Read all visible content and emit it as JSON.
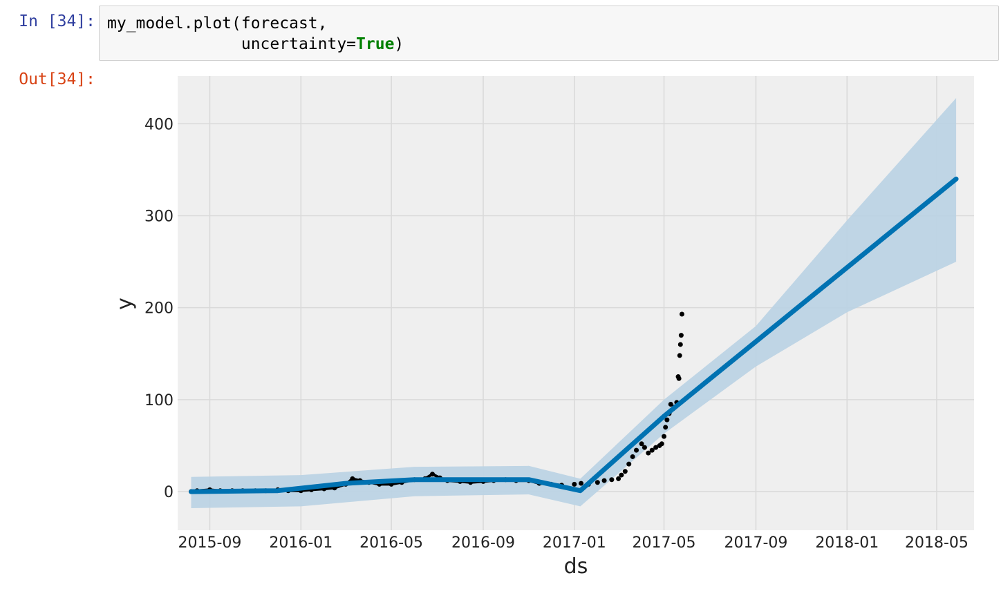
{
  "cell": {
    "input_prompt": "In [34]:",
    "output_prompt": "Out[34]:",
    "code": {
      "line1": "my_model.plot(forecast,",
      "line2_indent": "              uncertainty=",
      "line2_keyword": "True",
      "line2_end": ")"
    }
  },
  "chart_data": {
    "type": "line",
    "title": "",
    "xlabel": "ds",
    "ylabel": "y",
    "x_ticks": [
      "2015-09",
      "2016-01",
      "2016-05",
      "2016-09",
      "2017-01",
      "2017-05",
      "2017-09",
      "2018-01",
      "2018-05"
    ],
    "y_ticks": [
      0,
      100,
      200,
      300,
      400
    ],
    "xlim": [
      "2015-07-20",
      "2018-06-20"
    ],
    "ylim": [
      -42,
      452
    ],
    "grid": true,
    "colors": {
      "forecast": "#0072b2",
      "band": "#bcd3e4",
      "actual": "#000000",
      "background": "#efefef",
      "grid": "#d9d9d9"
    },
    "series": [
      {
        "name": "yhat",
        "x": [
          "2015-08-07",
          "2015-12-01",
          "2016-03-01",
          "2016-06-01",
          "2016-11-01",
          "2017-01-09",
          "2017-05-01",
          "2018-05-27"
        ],
        "y": [
          0,
          1,
          9,
          13,
          13,
          1,
          82,
          340
        ]
      },
      {
        "name": "yhat_upper",
        "x": [
          "2015-08-07",
          "2016-01-01",
          "2016-06-01",
          "2016-11-01",
          "2017-01-09",
          "2017-05-01",
          "2017-09-01",
          "2018-01-01",
          "2018-05-27"
        ],
        "y": [
          16,
          18,
          27,
          28,
          14,
          100,
          180,
          295,
          428
        ]
      },
      {
        "name": "yhat_lower",
        "x": [
          "2015-08-07",
          "2016-01-01",
          "2016-06-01",
          "2016-11-01",
          "2017-01-09",
          "2017-05-01",
          "2017-09-01",
          "2018-01-01",
          "2018-05-27"
        ],
        "y": [
          -18,
          -16,
          -5,
          -3,
          -16,
          63,
          136,
          195,
          250
        ]
      },
      {
        "name": "y",
        "x": [
          "2015-08-07",
          "2015-08-15",
          "2015-09-01",
          "2015-09-15",
          "2015-10-01",
          "2015-10-15",
          "2015-11-01",
          "2015-11-15",
          "2015-12-01",
          "2015-12-15",
          "2016-01-01",
          "2016-01-15",
          "2016-02-01",
          "2016-02-15",
          "2016-03-01",
          "2016-03-10",
          "2016-03-20",
          "2016-04-01",
          "2016-04-15",
          "2016-05-01",
          "2016-05-15",
          "2016-06-01",
          "2016-06-15",
          "2016-06-25",
          "2016-07-05",
          "2016-07-15",
          "2016-08-01",
          "2016-08-15",
          "2016-09-01",
          "2016-09-15",
          "2016-10-01",
          "2016-10-15",
          "2016-11-01",
          "2016-11-15",
          "2016-12-01",
          "2016-12-15",
          "2017-01-01",
          "2017-01-10",
          "2017-01-20",
          "2017-02-01",
          "2017-02-10",
          "2017-02-20",
          "2017-03-01",
          "2017-03-05",
          "2017-03-10",
          "2017-03-15",
          "2017-03-20",
          "2017-03-25",
          "2017-04-01",
          "2017-04-05",
          "2017-04-10",
          "2017-04-15",
          "2017-04-20",
          "2017-04-25",
          "2017-04-28",
          "2017-05-01",
          "2017-05-03",
          "2017-05-05",
          "2017-05-08",
          "2017-05-10",
          "2017-05-13",
          "2017-05-15",
          "2017-05-18",
          "2017-05-20",
          "2017-05-21",
          "2017-05-22",
          "2017-05-23",
          "2017-05-24",
          "2017-05-25"
        ],
        "y": [
          0,
          1,
          2,
          1,
          1,
          1,
          1,
          1,
          2,
          1,
          1,
          2,
          3,
          4,
          8,
          14,
          12,
          10,
          8,
          8,
          10,
          13,
          14,
          19,
          15,
          12,
          11,
          10,
          11,
          12,
          13,
          12,
          12,
          9,
          8,
          7,
          8,
          9,
          8,
          10,
          12,
          13,
          14,
          18,
          22,
          30,
          38,
          45,
          52,
          48,
          42,
          45,
          48,
          50,
          52,
          60,
          70,
          78,
          85,
          95,
          90,
          92,
          97,
          125,
          123,
          148,
          160,
          170,
          193
        ]
      }
    ]
  }
}
